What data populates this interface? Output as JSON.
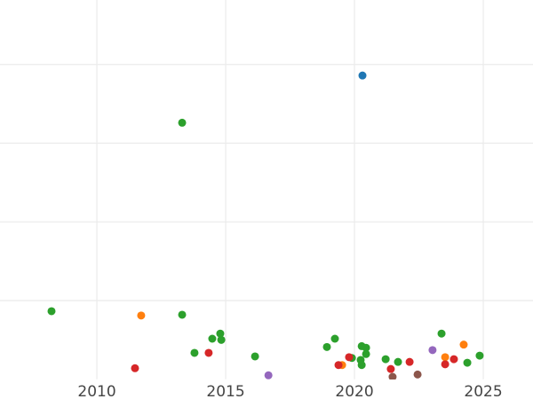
{
  "chart_data": {
    "type": "scatter",
    "title": "",
    "xlabel": "",
    "ylabel": "",
    "xlim": [
      2006.24,
      2026.93
    ],
    "ylim": [
      0,
      4.82
    ],
    "x_ticks": [
      2010,
      2015,
      2020,
      2025
    ],
    "x_tick_labels": [
      "2010",
      "2015",
      "2020",
      "2025"
    ],
    "y_gridlines": [
      1,
      2,
      3,
      4
    ],
    "y_tick_labels_visible": false,
    "grid": true,
    "legend": "none",
    "series": [
      {
        "color": "#2ca02c",
        "points": [
          [
            2008.24,
            0.865
          ],
          [
            2013.31,
            0.82
          ],
          [
            2013.31,
            3.26
          ],
          [
            2013.79,
            0.335
          ],
          [
            2014.48,
            0.515
          ],
          [
            2014.79,
            0.58
          ],
          [
            2014.83,
            0.5
          ],
          [
            2016.14,
            0.29
          ],
          [
            2018.93,
            0.41
          ],
          [
            2019.24,
            0.515
          ],
          [
            2019.9,
            0.27
          ],
          [
            2020.28,
            0.42
          ],
          [
            2020.45,
            0.4
          ],
          [
            2020.45,
            0.32
          ],
          [
            2020.24,
            0.245
          ],
          [
            2020.28,
            0.18
          ],
          [
            2021.21,
            0.255
          ],
          [
            2021.69,
            0.22
          ],
          [
            2023.38,
            0.58
          ],
          [
            2024.38,
            0.21
          ],
          [
            2024.86,
            0.3
          ]
        ]
      },
      {
        "color": "#ff7f0e",
        "points": [
          [
            2011.72,
            0.81
          ],
          [
            2019.52,
            0.18
          ],
          [
            2023.52,
            0.28
          ],
          [
            2024.24,
            0.44
          ]
        ]
      },
      {
        "color": "#d62728",
        "points": [
          [
            2011.48,
            0.14
          ],
          [
            2014.34,
            0.335
          ],
          [
            2019.38,
            0.18
          ],
          [
            2019.79,
            0.28
          ],
          [
            2021.41,
            0.13
          ],
          [
            2022.14,
            0.22
          ],
          [
            2023.52,
            0.19
          ],
          [
            2023.86,
            0.255
          ]
        ]
      },
      {
        "color": "#1f77b4",
        "points": [
          [
            2020.31,
            3.86
          ]
        ]
      },
      {
        "color": "#9467bd",
        "points": [
          [
            2016.66,
            0.05
          ],
          [
            2023.03,
            0.37
          ]
        ]
      },
      {
        "color": "#8c564b",
        "points": [
          [
            2021.48,
            0.03
          ],
          [
            2022.45,
            0.06
          ]
        ]
      }
    ]
  }
}
